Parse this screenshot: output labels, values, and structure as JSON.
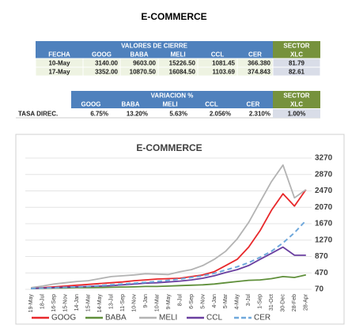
{
  "title": "E-COMMERCE",
  "table1": {
    "group_header": "VALORES DE CIERRE",
    "sector_header": "SECTOR",
    "columns": [
      "FECHA",
      "GOOG",
      "BABA",
      "MELI",
      "CCL",
      "CER",
      "XLC"
    ],
    "rows": [
      [
        "10-May",
        "3140.00",
        "9603.00",
        "15226.50",
        "1081.45",
        "366.380",
        "81.79"
      ],
      [
        "17-May",
        "3352.00",
        "10870.50",
        "16084.50",
        "1103.69",
        "374.843",
        "82.61"
      ]
    ]
  },
  "table2": {
    "group_header": "VARIACION %",
    "sector_header": "SECTOR",
    "columns": [
      "GOOG",
      "BABA",
      "MELI",
      "CCL",
      "CER",
      "XLC"
    ],
    "rows": [
      [
        "TASA DIREC.",
        "6.75%",
        "13.20%",
        "5.63%",
        "2.056%",
        "2.310%",
        "1.00%"
      ]
    ]
  },
  "chart_data": {
    "type": "line",
    "title": "E-COMMERCE",
    "categories": [
      "19-May",
      "18-Jul",
      "16-Sep",
      "15-Nov",
      "14-Jan",
      "15-Mar",
      "14-May",
      "13-Jul",
      "11-Sep",
      "10-Nov",
      "9-Jan",
      "10-Mar",
      "9-May",
      "8-Jul",
      "6-Sep",
      "5-Nov",
      "4-Jan",
      "5-Mar",
      "4-May",
      "3-Jul",
      "1-Sep",
      "31-Oct",
      "30-Dec",
      "28-Feb",
      "28-Apr"
    ],
    "series": [
      {
        "name": "GOOG",
        "color": "#e8282b",
        "values": [
          100,
          110,
          130,
          150,
          170,
          190,
          210,
          230,
          250,
          280,
          300,
          320,
          330,
          340,
          380,
          420,
          500,
          650,
          800,
          1100,
          1500,
          2000,
          2400,
          2100,
          2500
        ]
      },
      {
        "name": "BABA",
        "color": "#5f8f3a",
        "values": [
          90,
          95,
          100,
          105,
          110,
          110,
          115,
          120,
          125,
          130,
          140,
          140,
          150,
          160,
          170,
          180,
          200,
          230,
          260,
          290,
          300,
          330,
          380,
          360,
          420
        ]
      },
      {
        "name": "MELI",
        "color": "#b3b3b3",
        "values": [
          110,
          150,
          200,
          230,
          260,
          280,
          330,
          380,
          400,
          420,
          450,
          440,
          430,
          500,
          550,
          650,
          800,
          1000,
          1300,
          1700,
          2200,
          2700,
          3100,
          2300,
          2500
        ]
      },
      {
        "name": "CCL",
        "color": "#6a3fa0",
        "values": [
          90,
          100,
          110,
          120,
          130,
          140,
          150,
          160,
          180,
          200,
          220,
          230,
          250,
          270,
          300,
          340,
          400,
          480,
          550,
          650,
          800,
          950,
          1100,
          900,
          900
        ]
      },
      {
        "name": "CER",
        "color": "#6fa8dc",
        "dashed": true,
        "values": [
          90,
          100,
          110,
          120,
          130,
          140,
          160,
          180,
          200,
          220,
          240,
          260,
          290,
          320,
          360,
          400,
          460,
          540,
          620,
          720,
          850,
          1000,
          1200,
          1450,
          1750
        ]
      }
    ],
    "ylim": [
      70,
      3270
    ],
    "yticks": [
      70,
      470,
      870,
      1270,
      1670,
      2070,
      2470,
      2870,
      3270
    ],
    "grid": true,
    "legend": "bottom"
  }
}
